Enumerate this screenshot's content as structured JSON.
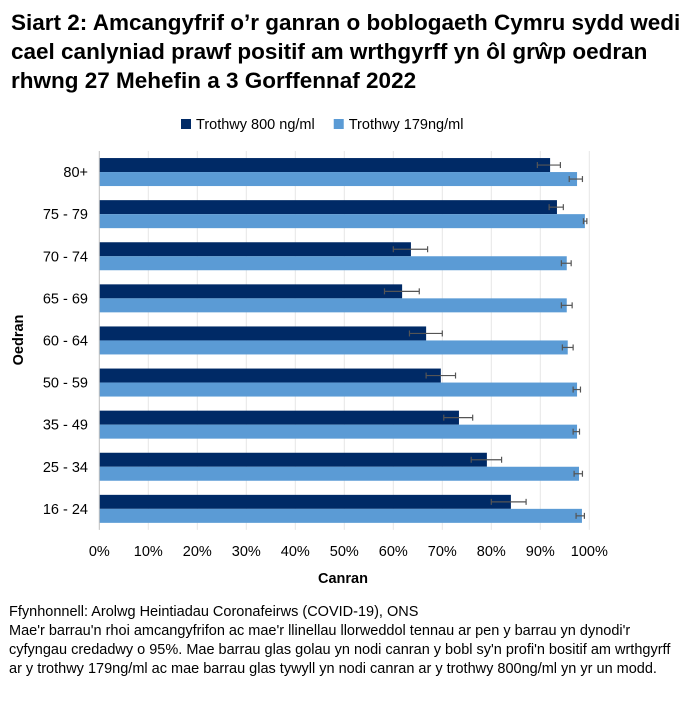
{
  "chart_data": {
    "type": "bar",
    "orientation": "horizontal",
    "title": "Siart 2: Amcangyfrif o’r ganran o boblogaeth Cymru sydd wedi cael canlyniad prawf positif am wrthgyrff yn ôl grŵp oedran rhwng 27 Mehefin a 3 Gorffennaf 2022",
    "xlabel": "Canran",
    "ylabel": "Oedran",
    "xlim": [
      0,
      100
    ],
    "xticks": [
      "0%",
      "10%",
      "20%",
      "30%",
      "40%",
      "50%",
      "60%",
      "70%",
      "80%",
      "90%",
      "100%"
    ],
    "grid": true,
    "legend_position": "top",
    "categories": [
      "80+",
      "75 - 79",
      "70 - 74",
      "65 - 69",
      "60 - 64",
      "50 - 59",
      "35 - 49",
      "25 - 34",
      "16 - 24"
    ],
    "series": [
      {
        "name": "Trothwy 800 ng/ml",
        "color": "#002A66",
        "values": [
          92.0,
          93.4,
          63.6,
          61.8,
          66.7,
          69.7,
          73.4,
          79.1,
          84.0
        ],
        "ci_low": [
          89.4,
          91.8,
          60.0,
          58.2,
          63.3,
          66.7,
          70.3,
          75.9,
          80.0
        ],
        "ci_high": [
          94.1,
          94.7,
          67.0,
          65.3,
          70.0,
          72.7,
          76.2,
          82.1,
          87.1
        ]
      },
      {
        "name": "Trothwy 179ng/ml",
        "color": "#5B9BD5",
        "values": [
          97.5,
          99.1,
          95.4,
          95.4,
          95.6,
          97.5,
          97.5,
          97.9,
          98.5
        ],
        "ci_low": [
          95.9,
          98.8,
          94.3,
          94.3,
          94.5,
          96.7,
          96.7,
          96.9,
          97.3
        ],
        "ci_high": [
          98.6,
          99.5,
          96.3,
          96.5,
          96.7,
          98.2,
          98.0,
          98.6,
          99.0
        ]
      }
    ]
  },
  "notes": {
    "source": "Ffynhonnell: Arolwg Heintiadau Coronafeirws (COVID-19), ONS",
    "explanation": "Mae'r barrau'n rhoi amcangyfrifon ac mae'r llinellau llorweddol tennau ar pen y barrau yn dynodi'r cyfyngau credadwy o 95%. Mae barrau glas golau yn nodi canran y bobl sy'n profi'n bositif am wrthgyrff ar y trothwy 179ng/ml ac mae barrau glas tywyll yn nodi canran ar y trothwy 800ng/ml yn yr un modd."
  }
}
